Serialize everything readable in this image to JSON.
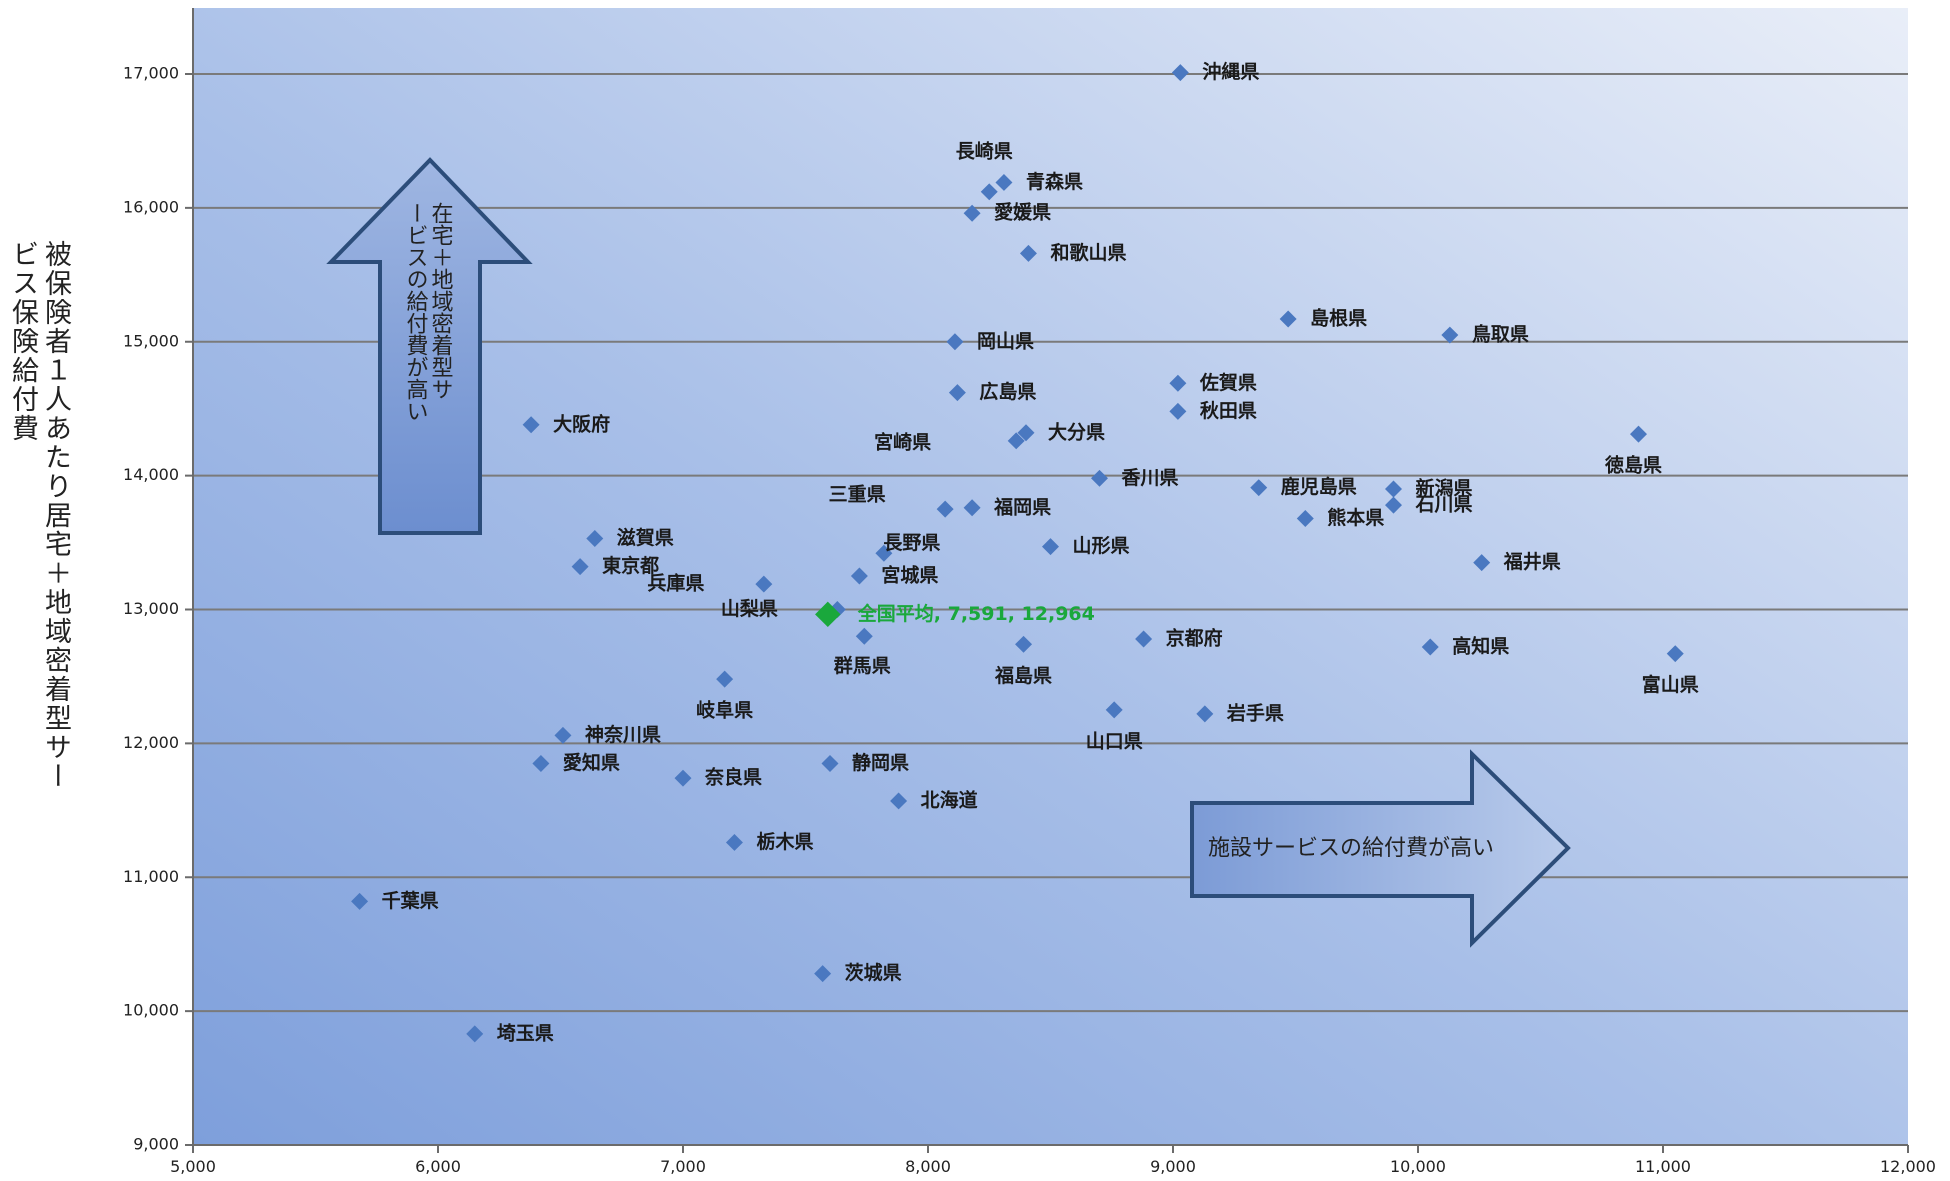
{
  "chart_data": {
    "type": "scatter",
    "title": "",
    "xlabel": "",
    "ylabel": "被保険者１人あたり居宅＋地域密着型サービス保険給付費",
    "xlim": [
      5000,
      12000
    ],
    "ylim": [
      9000,
      17500
    ],
    "x_ticks": [
      "5,000",
      "6,000",
      "7,000",
      "8,000",
      "9,000",
      "10,000",
      "11,000",
      "12,000"
    ],
    "y_ticks": [
      "9,000",
      "10,000",
      "11,000",
      "12,000",
      "13,000",
      "14,000",
      "15,000",
      "16,000",
      "17,000"
    ],
    "grid": "horizontal",
    "colors": {
      "point": "#4a78c0",
      "average": "#1aa83c"
    },
    "points": [
      {
        "label": "沖縄県",
        "x": 9030,
        "y": 17010
      },
      {
        "label": "長崎県",
        "x": 8250,
        "y": 16120
      },
      {
        "label": "青森県",
        "x": 8310,
        "y": 16190
      },
      {
        "label": "愛媛県",
        "x": 8180,
        "y": 15960
      },
      {
        "label": "和歌山県",
        "x": 8410,
        "y": 15660
      },
      {
        "label": "島根県",
        "x": 9470,
        "y": 15170
      },
      {
        "label": "鳥取県",
        "x": 10130,
        "y": 15050
      },
      {
        "label": "岡山県",
        "x": 8110,
        "y": 15000
      },
      {
        "label": "佐賀県",
        "x": 9020,
        "y": 14690
      },
      {
        "label": "広島県",
        "x": 8120,
        "y": 14620
      },
      {
        "label": "秋田県",
        "x": 9020,
        "y": 14480
      },
      {
        "label": "大阪府",
        "x": 6380,
        "y": 14380
      },
      {
        "label": "大分県",
        "x": 8400,
        "y": 14320
      },
      {
        "label": "宮崎県",
        "x": 8360,
        "y": 14260
      },
      {
        "label": "徳島県",
        "x": 10900,
        "y": 14310
      },
      {
        "label": "香川県",
        "x": 8700,
        "y": 13980
      },
      {
        "label": "鹿児島県",
        "x": 9350,
        "y": 13910
      },
      {
        "label": "新潟県",
        "x": 9900,
        "y": 13900
      },
      {
        "label": "石川県",
        "x": 9900,
        "y": 13780
      },
      {
        "label": "福岡県",
        "x": 8180,
        "y": 13760
      },
      {
        "label": "三重県",
        "x": 8070,
        "y": 13750
      },
      {
        "label": "熊本県",
        "x": 9540,
        "y": 13680
      },
      {
        "label": "滋賀県",
        "x": 6640,
        "y": 13530
      },
      {
        "label": "長野県",
        "x": 7820,
        "y": 13420
      },
      {
        "label": "山形県",
        "x": 8500,
        "y": 13470
      },
      {
        "label": "福井県",
        "x": 10260,
        "y": 13350
      },
      {
        "label": "東京都",
        "x": 6580,
        "y": 13320
      },
      {
        "label": "宮城県",
        "x": 7720,
        "y": 13250
      },
      {
        "label": "兵庫県",
        "x": 7330,
        "y": 13190
      },
      {
        "label": "山梨県",
        "x": 7630,
        "y": 13000
      },
      {
        "label": "群馬県",
        "x": 7740,
        "y": 12800
      },
      {
        "label": "京都府",
        "x": 8880,
        "y": 12780
      },
      {
        "label": "福島県",
        "x": 8390,
        "y": 12740
      },
      {
        "label": "高知県",
        "x": 10050,
        "y": 12720
      },
      {
        "label": "富山県",
        "x": 11050,
        "y": 12670
      },
      {
        "label": "岐阜県",
        "x": 7170,
        "y": 12480
      },
      {
        "label": "山口県",
        "x": 8760,
        "y": 12250
      },
      {
        "label": "岩手県",
        "x": 9130,
        "y": 12220
      },
      {
        "label": "神奈川県",
        "x": 6510,
        "y": 12060
      },
      {
        "label": "愛知県",
        "x": 6420,
        "y": 11850
      },
      {
        "label": "静岡県",
        "x": 7600,
        "y": 11850
      },
      {
        "label": "奈良県",
        "x": 7000,
        "y": 11740
      },
      {
        "label": "北海道",
        "x": 7880,
        "y": 11570
      },
      {
        "label": "栃木県",
        "x": 7210,
        "y": 11260
      },
      {
        "label": "千葉県",
        "x": 5680,
        "y": 10820
      },
      {
        "label": "茨城県",
        "x": 7570,
        "y": 10280
      },
      {
        "label": "埼玉県",
        "x": 6150,
        "y": 9830
      }
    ],
    "average": {
      "label": "全国平均, 7,591, 12,964",
      "x": 7591,
      "y": 12964
    },
    "annotations": {
      "up_arrow": "在宅＋地域密着型サービスの給付費が高い",
      "right_arrow": "施設サービスの給付費が高い"
    }
  }
}
